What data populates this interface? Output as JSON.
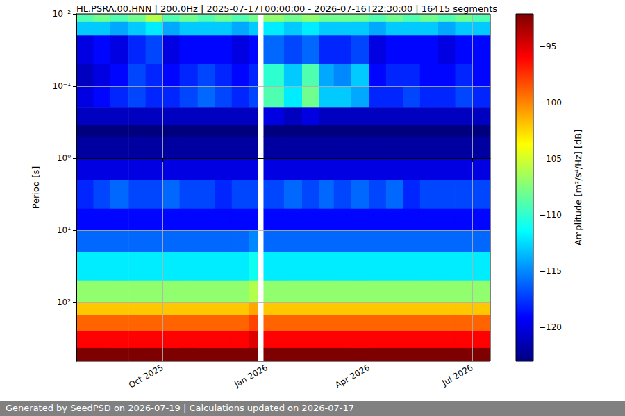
{
  "chart_data": {
    "type": "heatmap",
    "title": "HL.PSRA.00.HNN | 200.0Hz | 2025-07-17T00:00:00 - 2026-07-16T22:30:00 | 16415 segments",
    "y_label": "Period [s]",
    "footer": "Generated by SeedPSD on 2026-07-19 | Calculations updated on 2026-07-17",
    "log": "y",
    "grid": true,
    "xlim": [
      "2025-07-17",
      "2026-07-16T22:30"
    ],
    "xticks": [
      {
        "value": "2025-10-01",
        "label": "Oct 2025"
      },
      {
        "value": "2026-01-01",
        "label": "Jan 2026"
      },
      {
        "value": "2026-04-01",
        "label": "Apr 2026"
      },
      {
        "value": "2026-07-01",
        "label": "Jul 2026"
      }
    ],
    "ylim": [
      0.01,
      656
    ],
    "yticks": [
      {
        "value": 0.01,
        "label": "10⁻²"
      },
      {
        "value": 0.1,
        "label": "10⁻¹"
      },
      {
        "value": 1,
        "label": "10⁰"
      },
      {
        "value": 10,
        "label": "10¹"
      },
      {
        "value": 100,
        "label": "10²"
      }
    ],
    "time_edges": [
      "2025-07-17",
      "2025-08-01",
      "2025-08-16",
      "2025-09-01",
      "2025-09-16",
      "2025-10-01",
      "2025-10-16",
      "2025-11-01",
      "2025-11-16",
      "2025-12-01",
      "2025-12-16",
      "2025-12-24",
      "2025-12-29",
      "2026-01-16",
      "2026-02-01",
      "2026-02-16",
      "2026-03-01",
      "2026-03-16",
      "2026-04-01",
      "2026-04-16",
      "2026-05-01",
      "2026-05-16",
      "2026-06-01",
      "2026-06-16",
      "2026-07-01",
      "2026-07-16T22:30"
    ],
    "period_edges": [
      0.01,
      0.013,
      0.02,
      0.05,
      0.1,
      0.2,
      0.35,
      0.5,
      1,
      2,
      5,
      10,
      20,
      50,
      100,
      150,
      250,
      430,
      656
    ],
    "amplitude": [
      [
        -109,
        -113,
        -120,
        -121,
        -120,
        -121,
        -123,
        -122,
        -120,
        -118,
        -119,
        -116,
        -112,
        -107,
        -102,
        -99,
        -96,
        -92
      ],
      [
        -108,
        -113,
        -119,
        -120,
        -119,
        -121,
        -123,
        -122,
        -120,
        -117,
        -119,
        -116,
        -112,
        -107,
        -102,
        -99,
        -96,
        -92
      ],
      [
        -109,
        -114,
        -120,
        -119,
        -118,
        -121,
        -123,
        -122,
        -120,
        -116,
        -119,
        -116,
        -112,
        -107,
        -102,
        -99,
        -96,
        -92
      ],
      [
        -108,
        -113,
        -118,
        -117,
        -117,
        -121,
        -123,
        -122,
        -120,
        -117,
        -119,
        -116,
        -112,
        -107,
        -102,
        -99,
        -96,
        -92
      ],
      [
        -106,
        -112,
        -117,
        -118,
        -118,
        -121,
        -123,
        -122,
        -120,
        -117,
        -119,
        -116,
        -112,
        -107,
        -102,
        -99,
        -96,
        -92
      ],
      [
        -109,
        -114,
        -120,
        -119,
        -118,
        -121,
        -123,
        -122,
        -120,
        -116,
        -119,
        -116,
        -112,
        -107,
        -102,
        -99,
        -96,
        -92
      ],
      [
        -108,
        -113,
        -119,
        -118,
        -117,
        -121,
        -123,
        -122,
        -120,
        -117,
        -119,
        -116,
        -112,
        -107,
        -102,
        -99,
        -96,
        -92
      ],
      [
        -109,
        -113,
        -119,
        -117,
        -116,
        -121,
        -123,
        -122,
        -120,
        -117,
        -119,
        -116,
        -112,
        -107,
        -102,
        -99,
        -96,
        -92
      ],
      [
        -108,
        -113,
        -119,
        -118,
        -117,
        -121,
        -123,
        -122,
        -120,
        -118,
        -119,
        -116,
        -112,
        -107,
        -102,
        -99,
        -96,
        -92
      ],
      [
        -109,
        -114,
        -120,
        -119,
        -118,
        -121,
        -123,
        -122,
        -120,
        -117,
        -119,
        -116,
        -112,
        -107,
        -102,
        -99,
        -96,
        -92
      ],
      [
        -108,
        -113,
        -119,
        -118,
        -117,
        -121,
        -123,
        -122,
        -120,
        -117,
        -119,
        -115,
        -111,
        -106,
        -101,
        -98,
        -95,
        -92
      ],
      [
        null,
        null,
        null,
        null,
        null,
        null,
        null,
        null,
        null,
        null,
        null,
        null,
        null,
        null,
        null,
        null,
        null,
        null
      ],
      [
        -107,
        -112,
        -116,
        -110,
        -109,
        -120,
        -123,
        -122,
        -120,
        -117,
        -119,
        -116,
        -112,
        -107,
        -102,
        -99,
        -96,
        -92
      ],
      [
        -108,
        -113,
        -117,
        -113,
        -112,
        -121,
        -123,
        -122,
        -120,
        -116,
        -119,
        -116,
        -112,
        -107,
        -102,
        -99,
        -96,
        -92
      ],
      [
        -107,
        -112,
        -116,
        -109,
        -108,
        -120,
        -123,
        -122,
        -120,
        -117,
        -119,
        -116,
        -112,
        -107,
        -102,
        -99,
        -96,
        -92
      ],
      [
        -108,
        -113,
        -118,
        -114,
        -113,
        -121,
        -123,
        -122,
        -120,
        -116,
        -119,
        -116,
        -112,
        -107,
        -102,
        -99,
        -96,
        -92
      ],
      [
        -108,
        -113,
        -118,
        -115,
        -113,
        -121,
        -123,
        -122,
        -120,
        -117,
        -119,
        -116,
        -112,
        -107,
        -102,
        -99,
        -96,
        -92
      ],
      [
        -108,
        -113,
        -117,
        -113,
        -114,
        -121,
        -123,
        -122,
        -120,
        -116,
        -119,
        -116,
        -112,
        -107,
        -102,
        -99,
        -96,
        -92
      ],
      [
        -109,
        -114,
        -120,
        -119,
        -118,
        -121,
        -123,
        -122,
        -120,
        -117,
        -119,
        -116,
        -112,
        -107,
        -102,
        -99,
        -96,
        -92
      ],
      [
        -108,
        -113,
        -119,
        -118,
        -118,
        -121,
        -123,
        -122,
        -120,
        -116,
        -119,
        -116,
        -112,
        -107,
        -102,
        -99,
        -96,
        -92
      ],
      [
        -109,
        -113,
        -119,
        -118,
        -117,
        -121,
        -123,
        -122,
        -120,
        -118,
        -119,
        -116,
        -112,
        -107,
        -102,
        -99,
        -96,
        -92
      ],
      [
        -108,
        -113,
        -119,
        -119,
        -118,
        -121,
        -123,
        -122,
        -120,
        -117,
        -119,
        -116,
        -112,
        -107,
        -102,
        -99,
        -96,
        -92
      ],
      [
        -109,
        -114,
        -120,
        -119,
        -118,
        -121,
        -123,
        -122,
        -120,
        -117,
        -119,
        -116,
        -112,
        -107,
        -102,
        -99,
        -96,
        -92
      ],
      [
        -108,
        -113,
        -119,
        -118,
        -117,
        -121,
        -123,
        -122,
        -120,
        -117,
        -119,
        -116,
        -112,
        -107,
        -102,
        -99,
        -96,
        -92
      ],
      [
        -109,
        -113,
        -119,
        -119,
        -118,
        -121,
        -123,
        -122,
        -120,
        -117,
        -119,
        -116,
        -112,
        -107,
        -102,
        -99,
        -96,
        -92
      ]
    ],
    "colorbar": {
      "label": "Amplitude [m²/s⁴/Hz] [dB]",
      "range": [
        -123,
        -92.1
      ],
      "ticks": [
        {
          "value": -120,
          "label": "−120"
        },
        {
          "value": -115,
          "label": "−115"
        },
        {
          "value": -110,
          "label": "−110"
        },
        {
          "value": -105,
          "label": "−105"
        },
        {
          "value": -100,
          "label": "−100"
        },
        {
          "value": -95,
          "label": "−95"
        }
      ]
    }
  }
}
